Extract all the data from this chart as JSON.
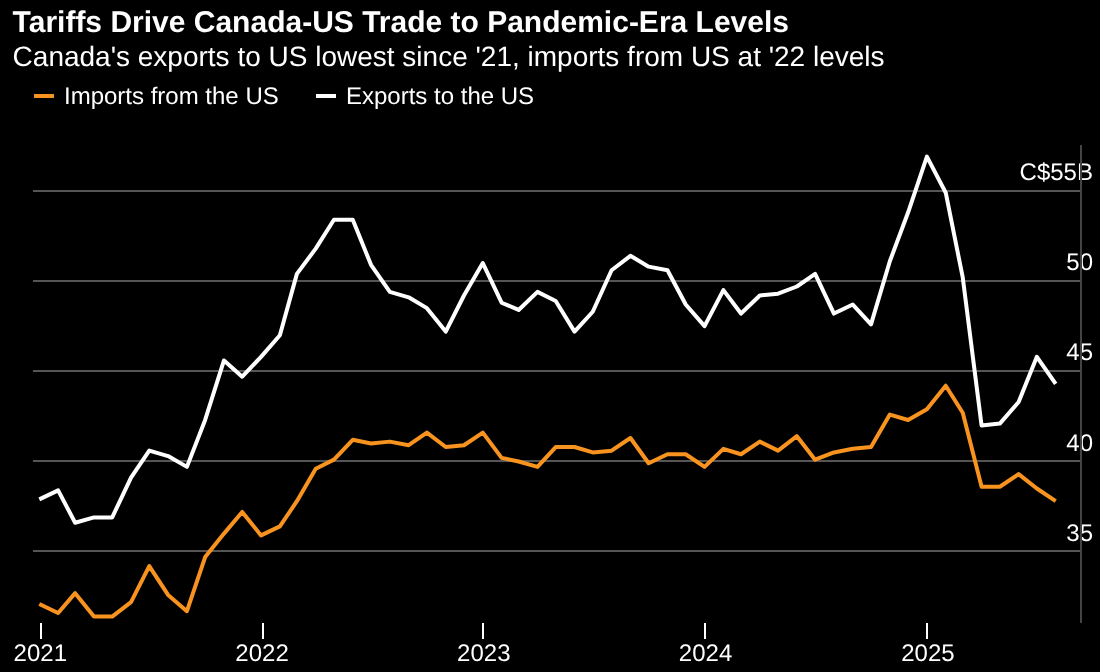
{
  "chart_data": {
    "type": "line",
    "title": "Tariffs Drive Canada-US Trade to Pandemic-Era Levels",
    "subtitle": "Canada's exports to US lowest since '21, imports from US at '22 levels",
    "x": [
      "2021-01",
      "2021-02",
      "2021-03",
      "2021-04",
      "2021-05",
      "2021-06",
      "2021-07",
      "2021-08",
      "2021-09",
      "2021-10",
      "2021-11",
      "2021-12",
      "2022-01",
      "2022-02",
      "2022-03",
      "2022-04",
      "2022-05",
      "2022-06",
      "2022-07",
      "2022-08",
      "2022-09",
      "2022-10",
      "2022-11",
      "2022-12",
      "2023-01",
      "2023-02",
      "2023-03",
      "2023-04",
      "2023-05",
      "2023-06",
      "2023-07",
      "2023-08",
      "2023-09",
      "2023-10",
      "2023-11",
      "2023-12",
      "2024-01",
      "2024-02",
      "2024-03",
      "2024-04",
      "2024-05",
      "2024-06",
      "2024-07",
      "2024-08",
      "2024-09",
      "2024-10",
      "2024-11",
      "2024-12",
      "2025-01",
      "2025-02",
      "2025-03",
      "2025-04",
      "2025-05",
      "2025-06",
      "2025-07",
      "2025-08"
    ],
    "series": [
      {
        "name": "Imports from the US",
        "color": "#f7931e",
        "values": [
          32.0,
          31.5,
          32.6,
          31.3,
          31.3,
          32.1,
          34.1,
          32.5,
          31.6,
          34.6,
          35.9,
          37.1,
          35.8,
          36.3,
          37.7,
          39.5,
          40.0,
          41.1,
          40.9,
          41.0,
          40.8,
          41.5,
          40.7,
          40.8,
          41.5,
          40.1,
          39.9,
          39.6,
          40.7,
          40.7,
          40.4,
          40.5,
          41.2,
          39.8,
          40.3,
          40.3,
          39.6,
          40.6,
          40.3,
          41.0,
          40.5,
          41.3,
          40.0,
          40.4,
          40.6,
          40.7,
          42.5,
          42.2,
          42.8,
          44.1,
          42.6,
          38.5,
          38.5,
          39.2,
          38.4,
          37.7
        ]
      },
      {
        "name": "Exports to the US",
        "color": "#ffffff",
        "values": [
          37.8,
          38.3,
          36.5,
          36.8,
          36.8,
          39.0,
          40.5,
          40.2,
          39.6,
          42.2,
          45.5,
          44.6,
          45.7,
          46.9,
          50.3,
          51.7,
          53.3,
          53.3,
          50.8,
          49.3,
          49.0,
          48.4,
          47.1,
          49.1,
          50.9,
          48.7,
          48.3,
          49.3,
          48.8,
          47.1,
          48.2,
          50.5,
          51.3,
          50.7,
          50.5,
          48.6,
          47.4,
          49.4,
          48.1,
          49.1,
          49.2,
          49.6,
          50.3,
          48.1,
          48.6,
          47.5,
          51.0,
          53.7,
          56.8,
          54.8,
          50.1,
          41.9,
          42.0,
          43.2,
          45.7,
          44.2
        ]
      }
    ],
    "xlim": [
      "2020-12-20",
      "2025-09-10"
    ],
    "xticks": [
      "2021",
      "2022",
      "2023",
      "2024",
      "2025"
    ],
    "ylim": [
      31,
      57.5
    ],
    "yticks": [
      35,
      40,
      45,
      50,
      {
        "value": 55,
        "label": "C$55B"
      }
    ],
    "grid": "y",
    "legend": "top left",
    "marker": "none",
    "line_style": "solid"
  }
}
